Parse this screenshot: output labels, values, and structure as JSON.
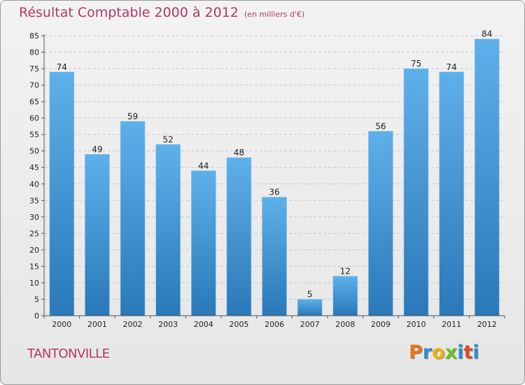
{
  "chart_data": {
    "type": "bar",
    "title": "Résultat Comptable 2000 à 2012",
    "subtitle": "(en milliers d'€)",
    "categories": [
      "2000",
      "2001",
      "2002",
      "2003",
      "2004",
      "2005",
      "2006",
      "2007",
      "2008",
      "2009",
      "2010",
      "2011",
      "2012"
    ],
    "values": [
      74,
      49,
      59,
      52,
      44,
      48,
      36,
      5,
      12,
      56,
      75,
      74,
      84
    ],
    "data_labels": [
      "74",
      "49",
      "59",
      "52",
      "44",
      "48",
      "36",
      "5",
      "12",
      "56",
      "75",
      "74",
      "84"
    ],
    "ylim": [
      0,
      85
    ],
    "yticks": [
      "0",
      "5",
      "10",
      "15",
      "20",
      "25",
      "30",
      "35",
      "40",
      "45",
      "50",
      "55",
      "60",
      "65",
      "70",
      "75",
      "80",
      "85"
    ],
    "grid": true,
    "xlabel": "",
    "ylabel": ""
  },
  "footer": {
    "city": "TANTONVILLE",
    "logo": [
      "P",
      "r",
      "o",
      "x",
      "i",
      "t",
      "i"
    ]
  },
  "colors": {
    "title": "#b03a63",
    "bar_top": "#5eb0ea",
    "bar_bottom": "#2a78b8",
    "logo": [
      "#e8741c",
      "#2e8fd0",
      "#f0b400",
      "#6cbf24",
      "#2e8fd0",
      "#e04a2a",
      "#2e8fd0"
    ]
  }
}
